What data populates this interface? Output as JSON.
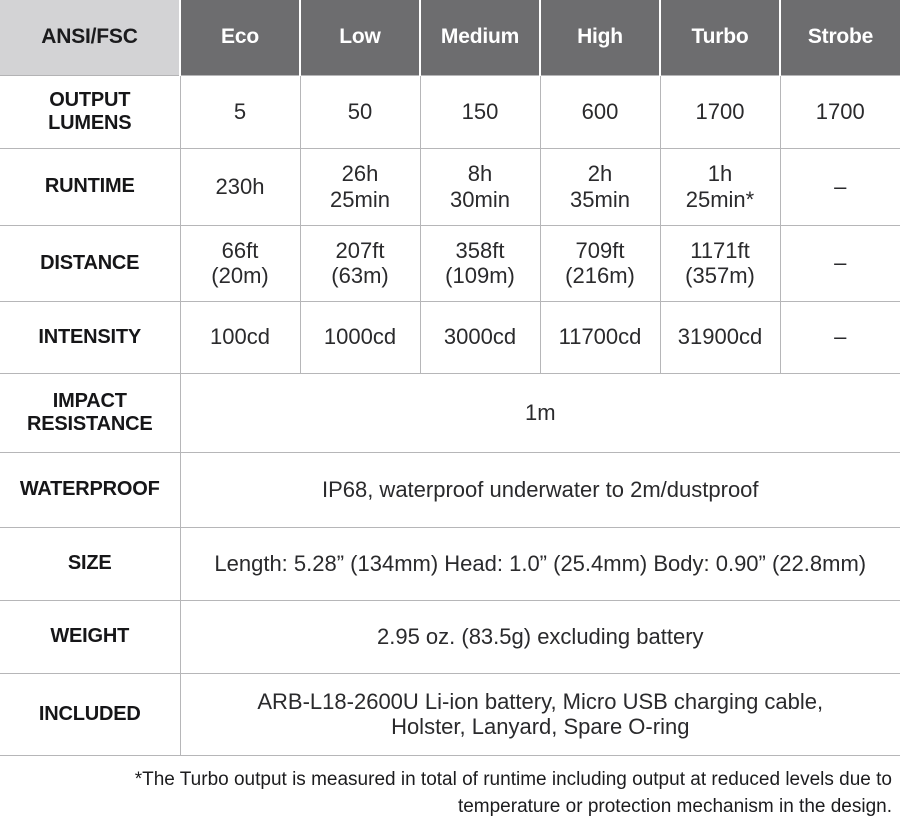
{
  "table": {
    "header": {
      "corner_label": "ANSI/FSC",
      "modes": [
        "Eco",
        "Low",
        "Medium",
        "High",
        "Turbo",
        "Strobe"
      ]
    },
    "rows": [
      {
        "label": "OUTPUT\nLUMENS",
        "values": [
          "5",
          "50",
          "150",
          "600",
          "1700",
          "1700"
        ]
      },
      {
        "label": "RUNTIME",
        "values": [
          "230h",
          "26h\n25min",
          "8h\n30min",
          "2h\n35min",
          "1h\n25min*",
          "–"
        ]
      },
      {
        "label": "DISTANCE",
        "values": [
          "66ft\n(20m)",
          "207ft\n(63m)",
          "358ft\n(109m)",
          "709ft\n(216m)",
          "1171ft\n(357m)",
          "–"
        ]
      },
      {
        "label": "INTENSITY",
        "values": [
          "100cd",
          "1000cd",
          "3000cd",
          "11700cd",
          "31900cd",
          "–"
        ]
      }
    ],
    "merged": [
      {
        "label": "IMPACT\nRESISTANCE",
        "value": "1m"
      },
      {
        "label": "WATERPROOF",
        "value": "IP68, waterproof underwater to 2m/dustproof"
      },
      {
        "label": "SIZE",
        "value": "Length: 5.28” (134mm) Head: 1.0” (25.4mm) Body: 0.90” (22.8mm)"
      },
      {
        "label": "WEIGHT",
        "value": "2.95 oz. (83.5g) excluding battery"
      },
      {
        "label": "INCLUDED",
        "value": "ARB-L18-2600U Li-ion battery, Micro USB charging cable,\nHolster, Lanyard, Spare O-ring"
      }
    ]
  },
  "footnote": {
    "line1": "*The Turbo output is measured in total of runtime including output at reduced levels due to",
    "line2": "temperature or protection mechanism in the design."
  },
  "colors": {
    "header_dark_bg": "#6d6d6f",
    "header_light_bg": "#d3d3d5",
    "border": "#b6b6b8",
    "header_text": "#ffffff",
    "body_text": "#1f1f21"
  }
}
